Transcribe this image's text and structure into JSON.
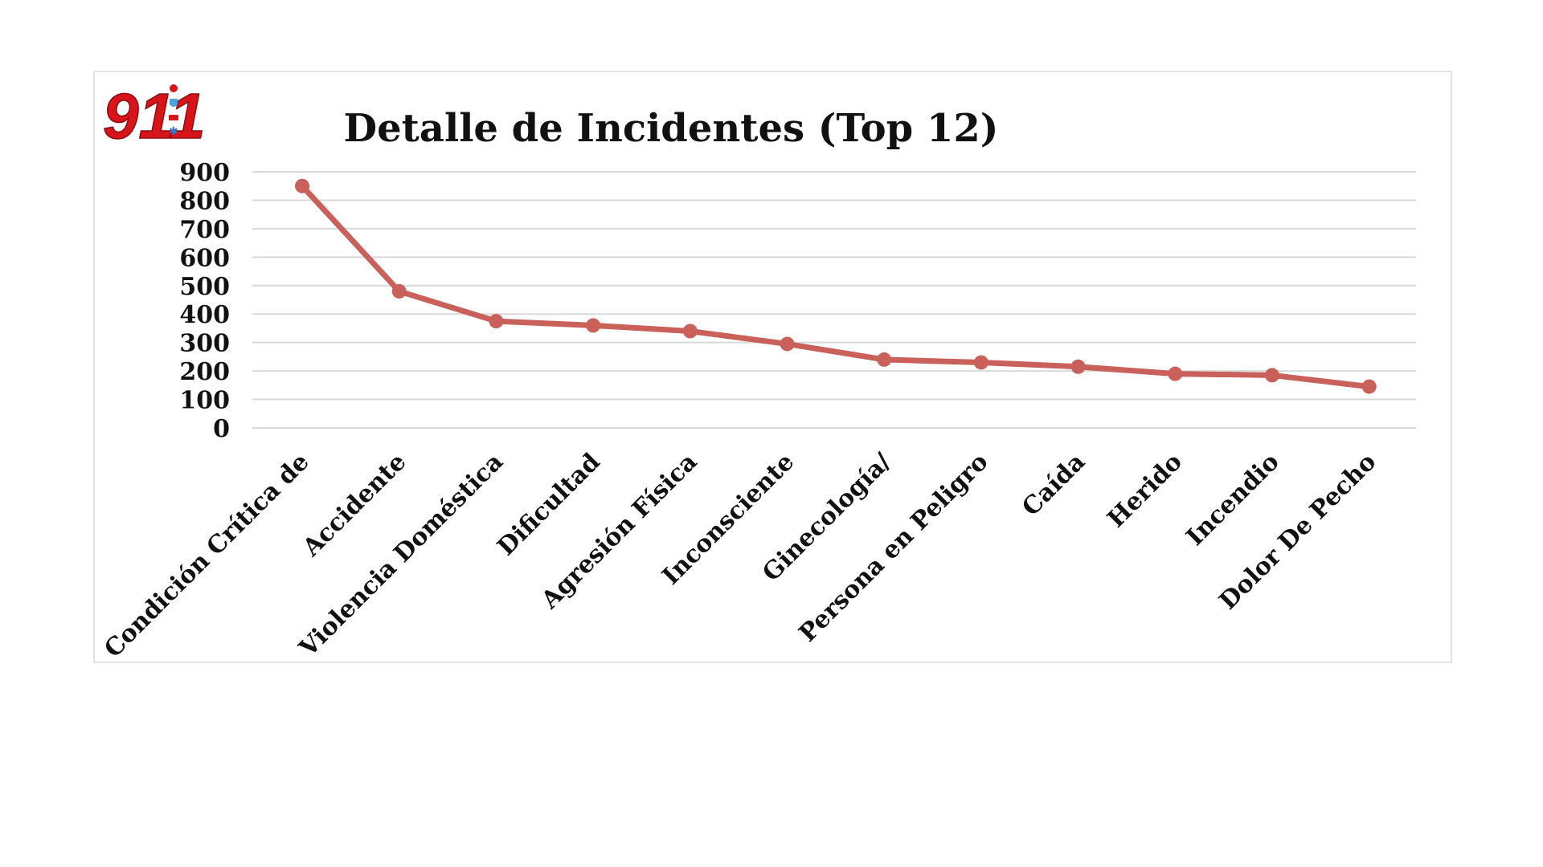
{
  "logo": {
    "text": "911",
    "icon_names": [
      "police-light-icon",
      "shield-icon",
      "ambulance-icon",
      "medical-star-icon"
    ]
  },
  "chart_data": {
    "type": "line",
    "title": "Detalle de Incidentes (Top 12)",
    "xlabel": "",
    "ylabel": "",
    "categories": [
      "Condición Crítica de",
      "Accidente",
      "Violencia Doméstica",
      "Dificultad",
      "Agresión Física",
      "Inconsciente",
      "Ginecología/",
      "Persona en Peligro",
      "Caída",
      "Herido",
      "Incendio",
      "Dolor De Pecho"
    ],
    "series": [
      {
        "values": [
          850,
          480,
          375,
          360,
          340,
          295,
          240,
          230,
          215,
          190,
          185,
          145
        ]
      }
    ],
    "ylim": [
      0,
      900
    ],
    "yticks": [
      0,
      100,
      200,
      300,
      400,
      500,
      600,
      700,
      800,
      900
    ],
    "grid": true,
    "legend": "none",
    "line_color": "#c9605a"
  }
}
